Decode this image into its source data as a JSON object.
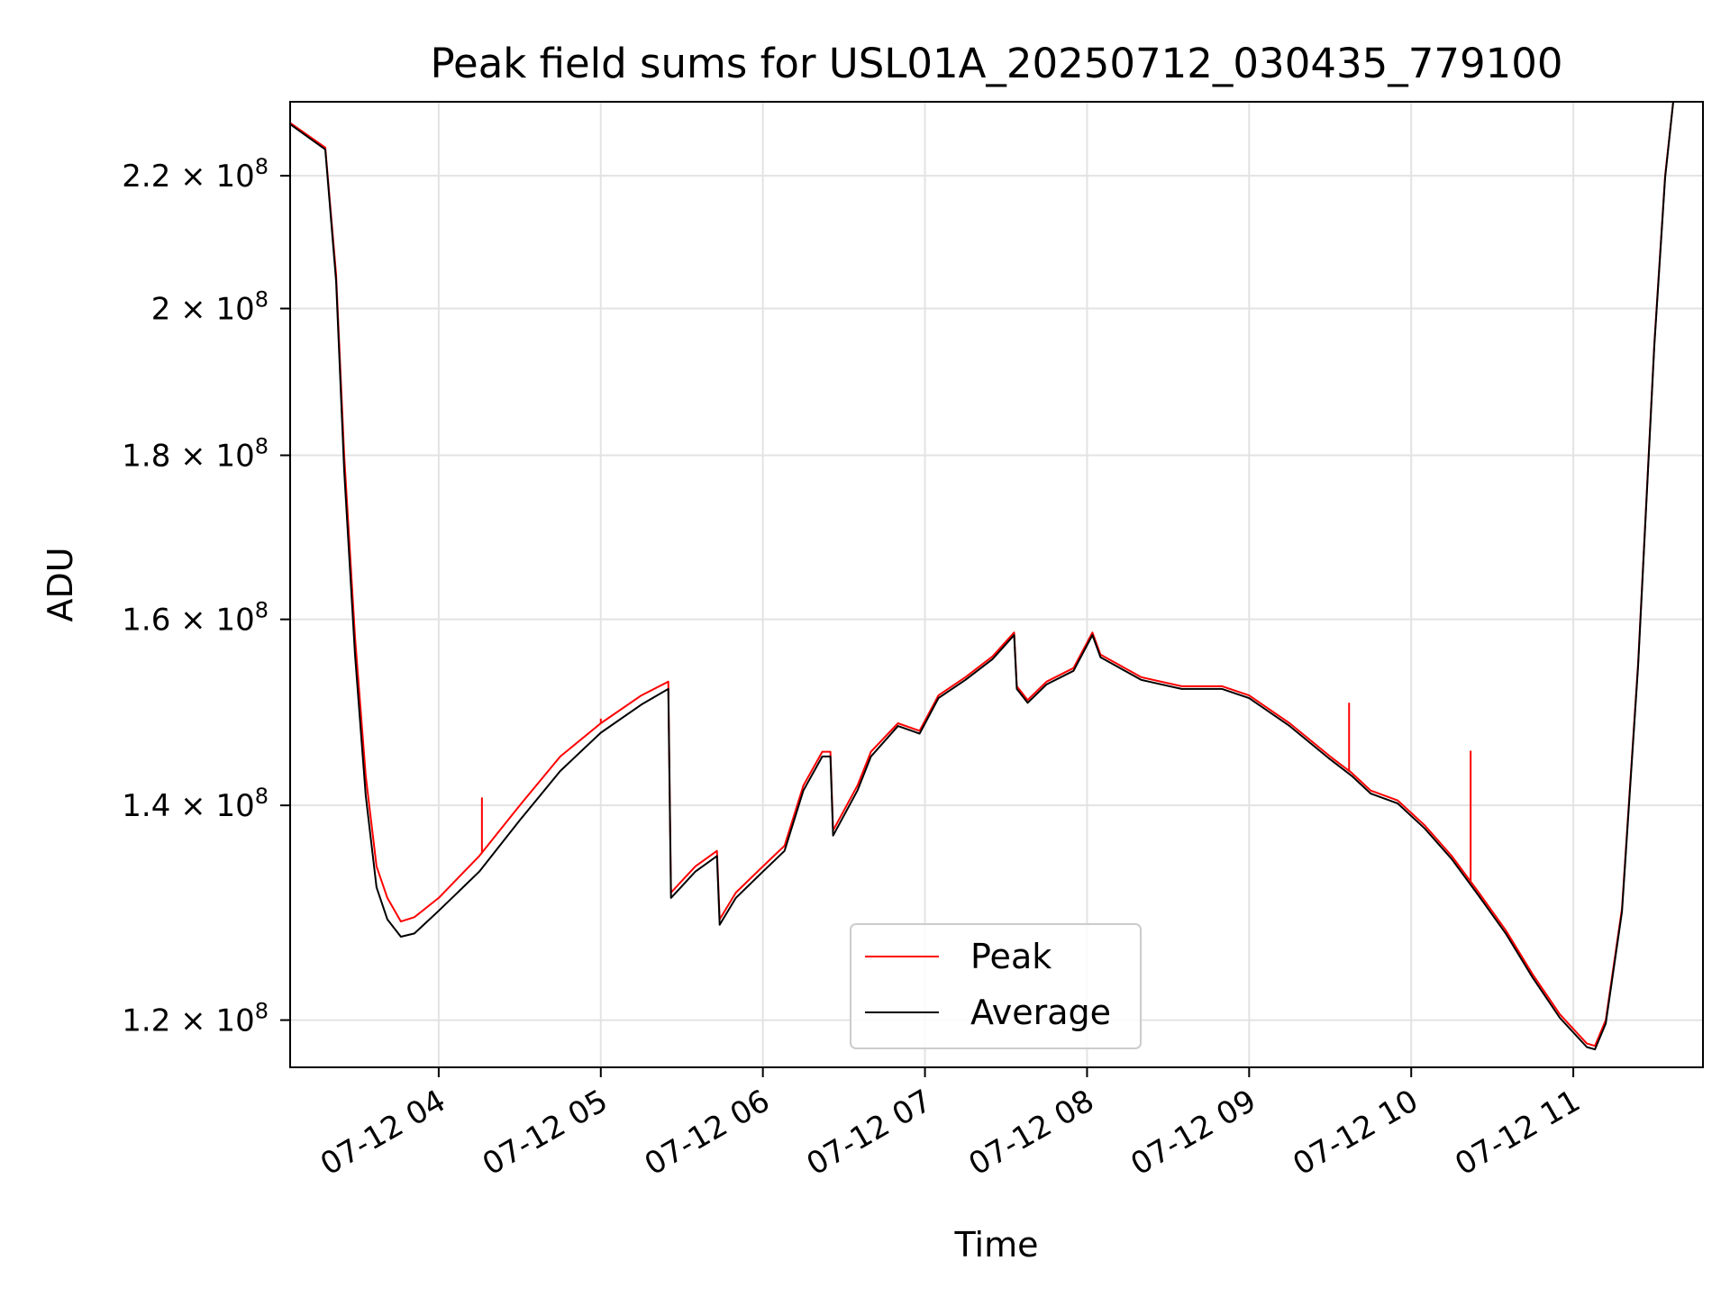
{
  "chart_data": {
    "type": "line",
    "title": "Peak field sums for USL01A_20250712_030435_779100",
    "xlabel": "Time",
    "ylabel": "ADU",
    "y_scale": "log",
    "xlim": [
      "2025-07-12 03:05",
      "2025-07-12 11:48"
    ],
    "ylim": [
      116000000,
      232000000
    ],
    "grid": true,
    "legend_position": "lower-center",
    "x_ticks": [
      {
        "x": "2025-07-12 04:00",
        "label": "07-12 04"
      },
      {
        "x": "2025-07-12 05:00",
        "label": "07-12 05"
      },
      {
        "x": "2025-07-12 06:00",
        "label": "07-12 06"
      },
      {
        "x": "2025-07-12 07:00",
        "label": "07-12 07"
      },
      {
        "x": "2025-07-12 08:00",
        "label": "07-12 08"
      },
      {
        "x": "2025-07-12 09:00",
        "label": "07-12 09"
      },
      {
        "x": "2025-07-12 10:00",
        "label": "07-12 10"
      },
      {
        "x": "2025-07-12 11:00",
        "label": "07-12 11"
      }
    ],
    "y_ticks": [
      {
        "y": 120000000,
        "mantissa": "1.2",
        "base": "10",
        "exp": "8"
      },
      {
        "y": 140000000,
        "mantissa": "1.4",
        "base": "10",
        "exp": "8"
      },
      {
        "y": 160000000,
        "mantissa": "1.6",
        "base": "10",
        "exp": "8"
      },
      {
        "y": 180000000,
        "mantissa": "1.8",
        "base": "10",
        "exp": "8"
      },
      {
        "y": 200000000,
        "mantissa": "2",
        "base": "10",
        "exp": "8"
      },
      {
        "y": 220000000,
        "mantissa": "2.2",
        "base": "10",
        "exp": "8"
      }
    ],
    "series": [
      {
        "name": "Peak",
        "color": "#ff0000",
        "points": [
          [
            "2025-07-12 03:05",
            228500000
          ],
          [
            "2025-07-12 03:18",
            224500000
          ],
          [
            "2025-07-12 03:22",
            205000000
          ],
          [
            "2025-07-12 03:25",
            180000000
          ],
          [
            "2025-07-12 03:29",
            158000000
          ],
          [
            "2025-07-12 03:33",
            143000000
          ],
          [
            "2025-07-12 03:37",
            134000000
          ],
          [
            "2025-07-12 03:41",
            131000000
          ],
          [
            "2025-07-12 03:46",
            128800000
          ],
          [
            "2025-07-12 03:51",
            129200000
          ],
          [
            "2025-07-12 04:00",
            131000000
          ],
          [
            "2025-07-12 04:15",
            135000000
          ],
          [
            "2025-07-12 04:30",
            140000000
          ],
          [
            "2025-07-12 04:45",
            145000000
          ],
          [
            "2025-07-12 05:00",
            148500000
          ],
          [
            "2025-07-12 05:15",
            151500000
          ],
          [
            "2025-07-12 05:25",
            153000000
          ],
          [
            "2025-07-12 05:26",
            131500000
          ],
          [
            "2025-07-12 05:35",
            134000000
          ],
          [
            "2025-07-12 05:43",
            135500000
          ],
          [
            "2025-07-12 05:44",
            129000000
          ],
          [
            "2025-07-12 05:50",
            131500000
          ],
          [
            "2025-07-12 06:00",
            134000000
          ],
          [
            "2025-07-12 06:08",
            136000000
          ],
          [
            "2025-07-12 06:15",
            142000000
          ],
          [
            "2025-07-12 06:22",
            145500000
          ],
          [
            "2025-07-12 06:25",
            145500000
          ],
          [
            "2025-07-12 06:26",
            137500000
          ],
          [
            "2025-07-12 06:35",
            142000000
          ],
          [
            "2025-07-12 06:40",
            145500000
          ],
          [
            "2025-07-12 06:50",
            148500000
          ],
          [
            "2025-07-12 06:58",
            147700000
          ],
          [
            "2025-07-12 07:05",
            151500000
          ],
          [
            "2025-07-12 07:15",
            153500000
          ],
          [
            "2025-07-12 07:25",
            155800000
          ],
          [
            "2025-07-12 07:33",
            158500000
          ],
          [
            "2025-07-12 07:34",
            152500000
          ],
          [
            "2025-07-12 07:38",
            151000000
          ],
          [
            "2025-07-12 07:45",
            153000000
          ],
          [
            "2025-07-12 07:55",
            154500000
          ],
          [
            "2025-07-12 08:02",
            158500000
          ],
          [
            "2025-07-12 08:05",
            156000000
          ],
          [
            "2025-07-12 08:20",
            153500000
          ],
          [
            "2025-07-12 08:35",
            152500000
          ],
          [
            "2025-07-12 08:50",
            152500000
          ],
          [
            "2025-07-12 09:00",
            151500000
          ],
          [
            "2025-07-12 09:15",
            148500000
          ],
          [
            "2025-07-12 09:30",
            145000000
          ],
          [
            "2025-07-12 09:38",
            143300000
          ],
          [
            "2025-07-12 09:45",
            141500000
          ],
          [
            "2025-07-12 09:55",
            140500000
          ],
          [
            "2025-07-12 10:05",
            138000000
          ],
          [
            "2025-07-12 10:15",
            135000000
          ],
          [
            "2025-07-12 10:25",
            131500000
          ],
          [
            "2025-07-12 10:35",
            128000000
          ],
          [
            "2025-07-12 10:45",
            124000000
          ],
          [
            "2025-07-12 10:55",
            120500000
          ],
          [
            "2025-07-12 11:05",
            118000000
          ],
          [
            "2025-07-12 11:08",
            117800000
          ],
          [
            "2025-07-12 11:12",
            120000000
          ],
          [
            "2025-07-12 11:18",
            130000000
          ],
          [
            "2025-07-12 11:24",
            155000000
          ],
          [
            "2025-07-12 11:30",
            195000000
          ],
          [
            "2025-07-12 11:34",
            220000000
          ],
          [
            "2025-07-12 11:37",
            232000000
          ]
        ],
        "spikes": [
          [
            "2025-07-12 04:16",
            140800000
          ],
          [
            "2025-07-12 05:00",
            149000000
          ],
          [
            "2025-07-12 09:37",
            150700000
          ],
          [
            "2025-07-12 10:22",
            145600000
          ]
        ]
      },
      {
        "name": "Average",
        "color": "#000000",
        "points": [
          [
            "2025-07-12 03:05",
            228300000
          ],
          [
            "2025-07-12 03:18",
            224200000
          ],
          [
            "2025-07-12 03:22",
            204000000
          ],
          [
            "2025-07-12 03:25",
            178000000
          ],
          [
            "2025-07-12 03:29",
            156000000
          ],
          [
            "2025-07-12 03:33",
            141000000
          ],
          [
            "2025-07-12 03:37",
            132000000
          ],
          [
            "2025-07-12 03:41",
            129000000
          ],
          [
            "2025-07-12 03:46",
            127400000
          ],
          [
            "2025-07-12 03:51",
            127700000
          ],
          [
            "2025-07-12 04:00",
            129800000
          ],
          [
            "2025-07-12 04:15",
            133500000
          ],
          [
            "2025-07-12 04:30",
            138500000
          ],
          [
            "2025-07-12 04:45",
            143500000
          ],
          [
            "2025-07-12 05:00",
            147500000
          ],
          [
            "2025-07-12 05:15",
            150500000
          ],
          [
            "2025-07-12 05:25",
            152200000
          ],
          [
            "2025-07-12 05:26",
            131000000
          ],
          [
            "2025-07-12 05:35",
            133500000
          ],
          [
            "2025-07-12 05:43",
            135000000
          ],
          [
            "2025-07-12 05:44",
            128500000
          ],
          [
            "2025-07-12 05:50",
            131000000
          ],
          [
            "2025-07-12 06:00",
            133500000
          ],
          [
            "2025-07-12 06:08",
            135500000
          ],
          [
            "2025-07-12 06:15",
            141500000
          ],
          [
            "2025-07-12 06:22",
            145000000
          ],
          [
            "2025-07-12 06:25",
            145000000
          ],
          [
            "2025-07-12 06:26",
            137000000
          ],
          [
            "2025-07-12 06:35",
            141500000
          ],
          [
            "2025-07-12 06:40",
            145000000
          ],
          [
            "2025-07-12 06:50",
            148200000
          ],
          [
            "2025-07-12 06:58",
            147400000
          ],
          [
            "2025-07-12 07:05",
            151200000
          ],
          [
            "2025-07-12 07:15",
            153200000
          ],
          [
            "2025-07-12 07:25",
            155500000
          ],
          [
            "2025-07-12 07:33",
            158200000
          ],
          [
            "2025-07-12 07:34",
            152200000
          ],
          [
            "2025-07-12 07:38",
            150700000
          ],
          [
            "2025-07-12 07:45",
            152700000
          ],
          [
            "2025-07-12 07:55",
            154200000
          ],
          [
            "2025-07-12 08:02",
            158200000
          ],
          [
            "2025-07-12 08:05",
            155700000
          ],
          [
            "2025-07-12 08:20",
            153200000
          ],
          [
            "2025-07-12 08:35",
            152200000
          ],
          [
            "2025-07-12 08:50",
            152200000
          ],
          [
            "2025-07-12 09:00",
            151200000
          ],
          [
            "2025-07-12 09:15",
            148200000
          ],
          [
            "2025-07-12 09:30",
            144700000
          ],
          [
            "2025-07-12 09:38",
            143000000
          ],
          [
            "2025-07-12 09:45",
            141200000
          ],
          [
            "2025-07-12 09:55",
            140200000
          ],
          [
            "2025-07-12 10:05",
            137700000
          ],
          [
            "2025-07-12 10:15",
            134700000
          ],
          [
            "2025-07-12 10:25",
            131200000
          ],
          [
            "2025-07-12 10:35",
            127700000
          ],
          [
            "2025-07-12 10:45",
            123700000
          ],
          [
            "2025-07-12 10:55",
            120200000
          ],
          [
            "2025-07-12 11:05",
            117700000
          ],
          [
            "2025-07-12 11:08",
            117500000
          ],
          [
            "2025-07-12 11:12",
            119700000
          ],
          [
            "2025-07-12 11:18",
            129700000
          ],
          [
            "2025-07-12 11:24",
            154700000
          ],
          [
            "2025-07-12 11:30",
            194700000
          ],
          [
            "2025-07-12 11:34",
            219700000
          ],
          [
            "2025-07-12 11:37",
            232000000
          ]
        ]
      }
    ]
  }
}
